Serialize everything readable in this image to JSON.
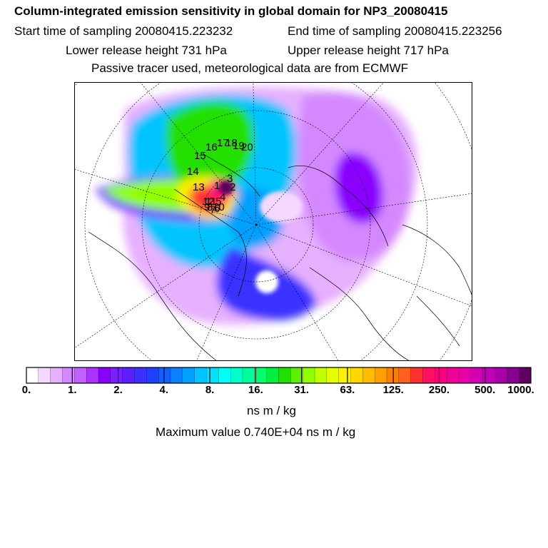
{
  "header": {
    "title": "Column-integrated emission sensitivity in global domain for NP3_20080415",
    "start": "Start time of sampling 20080415.223232",
    "end": "End time of sampling 20080415.223256",
    "lower": "Lower release height  731 hPa",
    "upper": "Upper release height  717 hPa",
    "passive": "Passive tracer used, meteorological data are from ECMWF"
  },
  "map": {
    "projection": "polar stereographic, North Pole",
    "track_labels": [
      "1",
      "2",
      "3",
      "4",
      "5",
      "6",
      "7",
      "8",
      "9",
      "10",
      "11",
      "12",
      "13",
      "14",
      "15",
      "16",
      "17",
      "18",
      "19",
      "20"
    ]
  },
  "legend": {
    "ticks": [
      "0.",
      "1.",
      "2.",
      "4.",
      "8.",
      "16.",
      "31.",
      "63.",
      "125.",
      "250.",
      "500.",
      "1000."
    ],
    "colors": [
      "#ffffff",
      "#f4d8ff",
      "#e6b0ff",
      "#d488ff",
      "#c060ff",
      "#aa33ff",
      "#8a00ff",
      "#7a20ff",
      "#5a20ff",
      "#3a30ff",
      "#2040ff",
      "#1060ff",
      "#0a80ff",
      "#00a0ff",
      "#00c4ff",
      "#00e0ff",
      "#00fff0",
      "#00ffc8",
      "#00ff9c",
      "#00ff6a",
      "#00f040",
      "#20e000",
      "#5cf000",
      "#90ff00",
      "#c0ff00",
      "#e6ff00",
      "#fff000",
      "#ffd800",
      "#ffbc00",
      "#ffa000",
      "#ff8000",
      "#ff6020",
      "#ff3030",
      "#ff1060",
      "#ff0080",
      "#f00098",
      "#e800a8",
      "#d400b4",
      "#c000b8",
      "#a800a8",
      "#880090",
      "#600060"
    ],
    "units": "ns m / kg",
    "maximum": "Maximum value  0.740E+04 ns m / kg"
  }
}
